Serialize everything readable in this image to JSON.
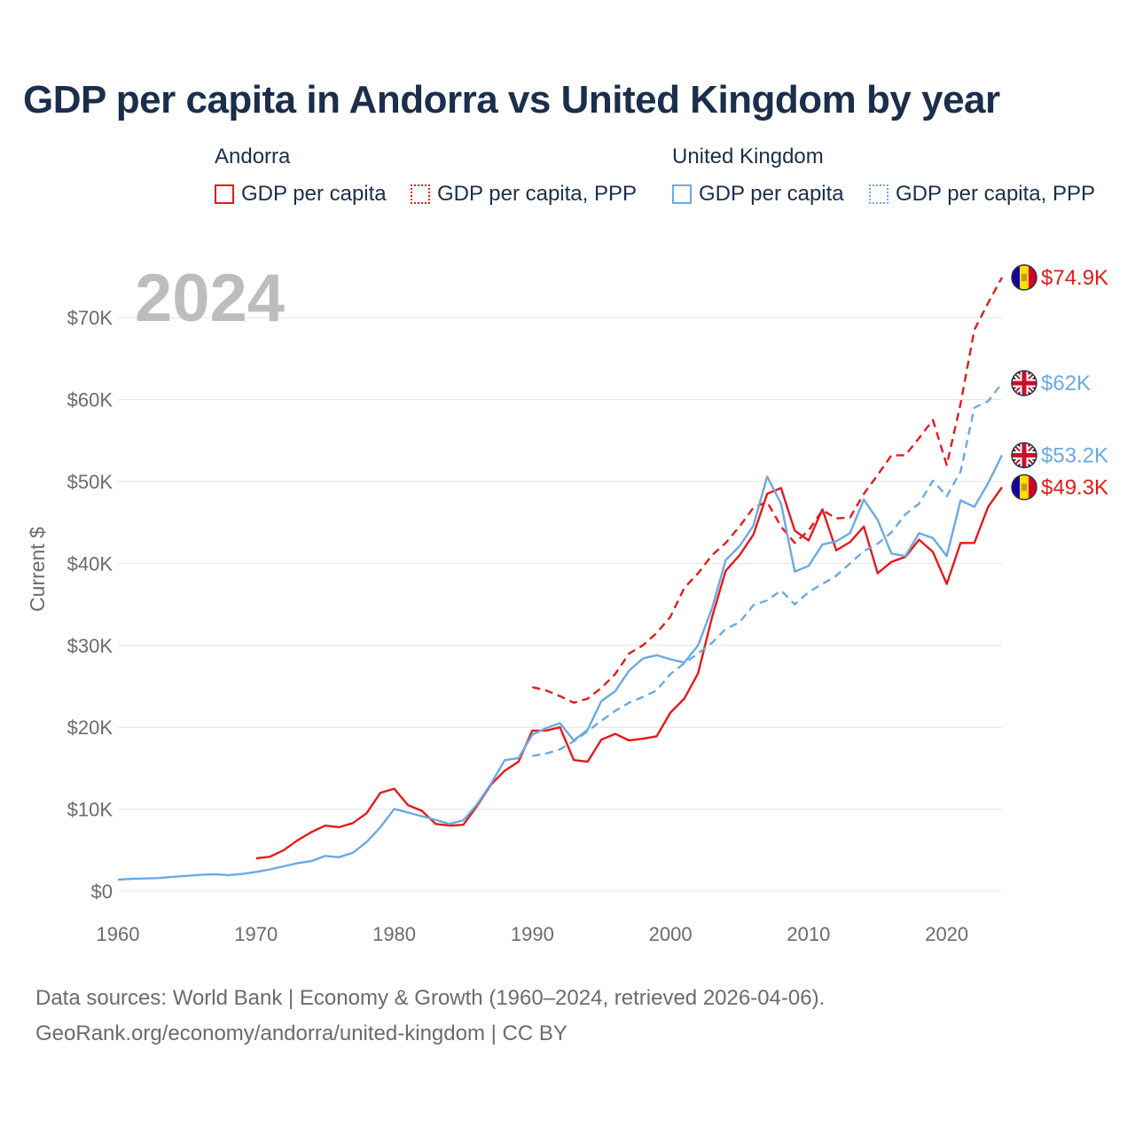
{
  "title": "GDP per capita in Andorra vs United Kingdom by year",
  "legend": {
    "groups": [
      {
        "name": "Andorra",
        "items": [
          {
            "label": "GDP per capita",
            "style": "solid",
            "color": "#e41a1c"
          },
          {
            "label": "GDP per capita, PPP",
            "style": "dashed",
            "color": "#e41a1c"
          }
        ]
      },
      {
        "name": "United Kingdom",
        "items": [
          {
            "label": "GDP per capita",
            "style": "solid",
            "color": "#6aaae4"
          },
          {
            "label": "GDP per capita, PPP",
            "style": "dashed",
            "color": "#6aaae4"
          }
        ]
      }
    ]
  },
  "sources_line1": "Data sources: World Bank | Economy & Growth (1960–2024, retrieved 2026-04-06).",
  "sources_line2": "GeoRank.org/economy/andorra/united-kingdom | CC BY",
  "chart_data": {
    "type": "line",
    "title": "GDP per capita in Andorra vs United Kingdom by year",
    "year_label": "2024",
    "xlabel": "",
    "ylabel": "Current $",
    "xlim": [
      1960,
      2024
    ],
    "ylim": [
      0,
      75000
    ],
    "x_ticks": [
      1960,
      1970,
      1980,
      1990,
      2000,
      2010,
      2020
    ],
    "y_ticks": [
      0,
      10000,
      20000,
      30000,
      40000,
      50000,
      60000,
      70000
    ],
    "y_tick_labels": [
      "$0",
      "$10K",
      "$20K",
      "$30K",
      "$40K",
      "$50K",
      "$60K",
      "$70K"
    ],
    "grid": "horizontal",
    "series": [
      {
        "name": "Andorra GDP per capita",
        "country": "Andorra",
        "style": "solid",
        "color": "#e41a1c",
        "end_label": "$49.3K",
        "flag": "andorra-flag-icon",
        "points": [
          [
            1970,
            4000
          ],
          [
            1971,
            4200
          ],
          [
            1972,
            5000
          ],
          [
            1973,
            6200
          ],
          [
            1974,
            7200
          ],
          [
            1975,
            8000
          ],
          [
            1976,
            7800
          ],
          [
            1977,
            8300
          ],
          [
            1978,
            9500
          ],
          [
            1979,
            12000
          ],
          [
            1980,
            12500
          ],
          [
            1981,
            10500
          ],
          [
            1982,
            9800
          ],
          [
            1983,
            8200
          ],
          [
            1984,
            8000
          ],
          [
            1985,
            8100
          ],
          [
            1986,
            10400
          ],
          [
            1987,
            13000
          ],
          [
            1988,
            14700
          ],
          [
            1989,
            15800
          ],
          [
            1990,
            19600
          ],
          [
            1991,
            19600
          ],
          [
            1992,
            20000
          ],
          [
            1993,
            16000
          ],
          [
            1994,
            15800
          ],
          [
            1995,
            18500
          ],
          [
            1996,
            19200
          ],
          [
            1997,
            18400
          ],
          [
            1998,
            18600
          ],
          [
            1999,
            18900
          ],
          [
            2000,
            21800
          ],
          [
            2001,
            23500
          ],
          [
            2002,
            26600
          ],
          [
            2003,
            33400
          ],
          [
            2004,
            39100
          ],
          [
            2005,
            41000
          ],
          [
            2006,
            43500
          ],
          [
            2007,
            48500
          ],
          [
            2008,
            49200
          ],
          [
            2009,
            44000
          ],
          [
            2010,
            42800
          ],
          [
            2011,
            46600
          ],
          [
            2012,
            41600
          ],
          [
            2013,
            42600
          ],
          [
            2014,
            44500
          ],
          [
            2015,
            38800
          ],
          [
            2016,
            40200
          ],
          [
            2017,
            40800
          ],
          [
            2018,
            42900
          ],
          [
            2019,
            41400
          ],
          [
            2020,
            37500
          ],
          [
            2021,
            42500
          ],
          [
            2022,
            42500
          ],
          [
            2023,
            46900
          ],
          [
            2024,
            49300
          ]
        ]
      },
      {
        "name": "Andorra GDP per capita, PPP",
        "country": "Andorra",
        "style": "dashed",
        "color": "#e41a1c",
        "end_label": "$74.9K",
        "flag": "andorra-flag-icon",
        "points": [
          [
            1990,
            24900
          ],
          [
            1991,
            24500
          ],
          [
            1992,
            23800
          ],
          [
            1993,
            23000
          ],
          [
            1994,
            23500
          ],
          [
            1995,
            24800
          ],
          [
            1996,
            26500
          ],
          [
            1997,
            29000
          ],
          [
            1998,
            30000
          ],
          [
            1999,
            31500
          ],
          [
            2000,
            33500
          ],
          [
            2001,
            37000
          ],
          [
            2002,
            38800
          ],
          [
            2003,
            41000
          ],
          [
            2004,
            42500
          ],
          [
            2005,
            44500
          ],
          [
            2006,
            46800
          ],
          [
            2007,
            47500
          ],
          [
            2008,
            44500
          ],
          [
            2009,
            42500
          ],
          [
            2010,
            44000
          ],
          [
            2011,
            46500
          ],
          [
            2012,
            45500
          ],
          [
            2013,
            45600
          ],
          [
            2014,
            48500
          ],
          [
            2015,
            50800
          ],
          [
            2016,
            53200
          ],
          [
            2017,
            53200
          ],
          [
            2018,
            55300
          ],
          [
            2019,
            57500
          ],
          [
            2020,
            52000
          ],
          [
            2021,
            59500
          ],
          [
            2022,
            68500
          ],
          [
            2023,
            71800
          ],
          [
            2024,
            74900
          ]
        ]
      },
      {
        "name": "United Kingdom GDP per capita",
        "country": "United Kingdom",
        "style": "solid",
        "color": "#6aaae4",
        "end_label": "$53.2K",
        "flag": "uk-flag-icon",
        "points": [
          [
            1960,
            1400
          ],
          [
            1961,
            1500
          ],
          [
            1962,
            1550
          ],
          [
            1963,
            1600
          ],
          [
            1964,
            1750
          ],
          [
            1965,
            1870
          ],
          [
            1966,
            1990
          ],
          [
            1967,
            2070
          ],
          [
            1968,
            1960
          ],
          [
            1969,
            2100
          ],
          [
            1970,
            2350
          ],
          [
            1971,
            2650
          ],
          [
            1972,
            3030
          ],
          [
            1973,
            3420
          ],
          [
            1974,
            3670
          ],
          [
            1975,
            4300
          ],
          [
            1976,
            4140
          ],
          [
            1977,
            4680
          ],
          [
            1978,
            5980
          ],
          [
            1979,
            7800
          ],
          [
            1980,
            10030
          ],
          [
            1981,
            9600
          ],
          [
            1982,
            9150
          ],
          [
            1983,
            8700
          ],
          [
            1984,
            8200
          ],
          [
            1985,
            8650
          ],
          [
            1986,
            10600
          ],
          [
            1987,
            13100
          ],
          [
            1988,
            15980
          ],
          [
            1989,
            16240
          ],
          [
            1990,
            19100
          ],
          [
            1991,
            19900
          ],
          [
            1992,
            20500
          ],
          [
            1993,
            18400
          ],
          [
            1994,
            19700
          ],
          [
            1995,
            23200
          ],
          [
            1996,
            24400
          ],
          [
            1997,
            26900
          ],
          [
            1998,
            28400
          ],
          [
            1999,
            28800
          ],
          [
            2000,
            28300
          ],
          [
            2001,
            27900
          ],
          [
            2002,
            30000
          ],
          [
            2003,
            34500
          ],
          [
            2004,
            40400
          ],
          [
            2005,
            42100
          ],
          [
            2006,
            44600
          ],
          [
            2007,
            50600
          ],
          [
            2008,
            47300
          ],
          [
            2009,
            39000
          ],
          [
            2010,
            39700
          ],
          [
            2011,
            42300
          ],
          [
            2012,
            42700
          ],
          [
            2013,
            43700
          ],
          [
            2014,
            47800
          ],
          [
            2015,
            45300
          ],
          [
            2016,
            41200
          ],
          [
            2017,
            40900
          ],
          [
            2018,
            43700
          ],
          [
            2019,
            43100
          ],
          [
            2020,
            40900
          ],
          [
            2021,
            47700
          ],
          [
            2022,
            46900
          ],
          [
            2023,
            49800
          ],
          [
            2024,
            53200
          ]
        ]
      },
      {
        "name": "United Kingdom GDP per capita, PPP",
        "country": "United Kingdom",
        "style": "dashed",
        "color": "#6aaae4",
        "end_label": "$62K",
        "flag": "uk-flag-icon",
        "points": [
          [
            1990,
            16500
          ],
          [
            1991,
            16800
          ],
          [
            1992,
            17300
          ],
          [
            1993,
            18300
          ],
          [
            1994,
            19500
          ],
          [
            1995,
            20800
          ],
          [
            1996,
            22000
          ],
          [
            1997,
            23000
          ],
          [
            1998,
            23700
          ],
          [
            1999,
            24500
          ],
          [
            2000,
            26500
          ],
          [
            2001,
            27800
          ],
          [
            2002,
            29000
          ],
          [
            2003,
            30300
          ],
          [
            2004,
            32000
          ],
          [
            2005,
            32800
          ],
          [
            2006,
            34900
          ],
          [
            2007,
            35500
          ],
          [
            2008,
            36700
          ],
          [
            2009,
            35000
          ],
          [
            2010,
            36500
          ],
          [
            2011,
            37500
          ],
          [
            2012,
            38500
          ],
          [
            2013,
            40000
          ],
          [
            2014,
            41500
          ],
          [
            2015,
            42400
          ],
          [
            2016,
            43800
          ],
          [
            2017,
            46000
          ],
          [
            2018,
            47300
          ],
          [
            2019,
            50100
          ],
          [
            2020,
            48200
          ],
          [
            2021,
            51200
          ],
          [
            2022,
            59000
          ],
          [
            2023,
            59800
          ],
          [
            2024,
            62000
          ]
        ]
      }
    ]
  }
}
